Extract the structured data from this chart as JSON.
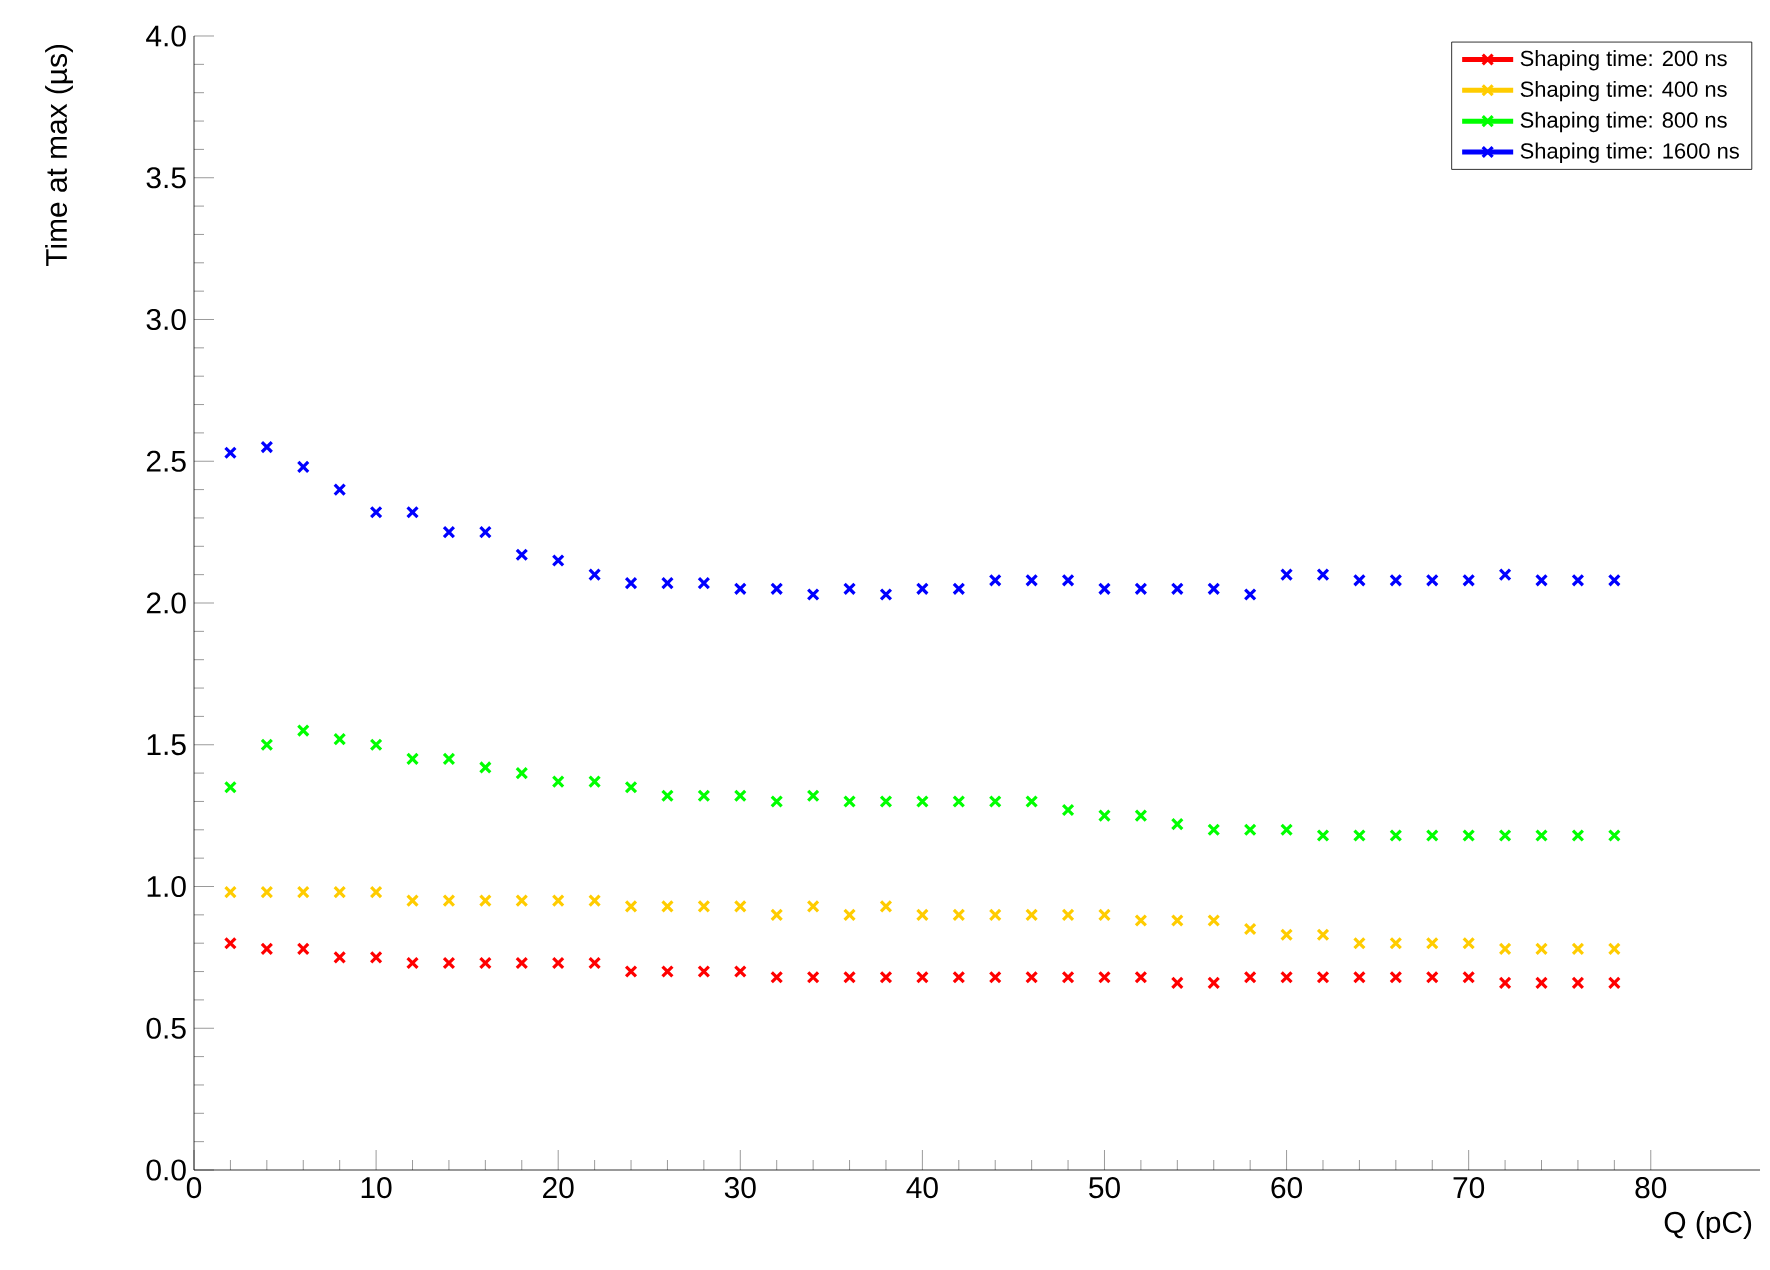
{
  "chart_data": {
    "type": "scatter",
    "xlabel": "Q (pC)",
    "ylabel": "Time at max (µs)",
    "x": [
      2,
      4,
      6,
      8,
      10,
      12,
      14,
      16,
      18,
      20,
      22,
      24,
      26,
      28,
      30,
      32,
      34,
      36,
      38,
      40,
      42,
      44,
      46,
      48,
      50,
      52,
      54,
      56,
      58,
      60,
      62,
      64,
      66,
      68,
      70,
      72,
      74,
      76,
      78
    ],
    "series": [
      {
        "name": "Shaping time: 200  ns",
        "color": "#ff0000",
        "values": [
          0.8,
          0.78,
          0.78,
          0.75,
          0.75,
          0.73,
          0.73,
          0.73,
          0.73,
          0.73,
          0.73,
          0.7,
          0.7,
          0.7,
          0.7,
          0.68,
          0.68,
          0.68,
          0.68,
          0.68,
          0.68,
          0.68,
          0.68,
          0.68,
          0.68,
          0.68,
          0.66,
          0.66,
          0.68,
          0.68,
          0.68,
          0.68,
          0.68,
          0.68,
          0.68,
          0.66,
          0.66,
          0.66,
          0.66
        ]
      },
      {
        "name": "Shaping time: 400  ns",
        "color": "#ffcc00",
        "values": [
          0.98,
          0.98,
          0.98,
          0.98,
          0.98,
          0.95,
          0.95,
          0.95,
          0.95,
          0.95,
          0.95,
          0.93,
          0.93,
          0.93,
          0.93,
          0.9,
          0.93,
          0.9,
          0.93,
          0.9,
          0.9,
          0.9,
          0.9,
          0.9,
          0.9,
          0.88,
          0.88,
          0.88,
          0.85,
          0.83,
          0.83,
          0.8,
          0.8,
          0.8,
          0.8,
          0.78,
          0.78,
          0.78,
          0.78
        ]
      },
      {
        "name": "Shaping  time:  800  ns",
        "color": "#00ff00",
        "values": [
          1.35,
          1.5,
          1.55,
          1.52,
          1.5,
          1.45,
          1.45,
          1.42,
          1.4,
          1.37,
          1.37,
          1.35,
          1.32,
          1.32,
          1.32,
          1.3,
          1.32,
          1.3,
          1.3,
          1.3,
          1.3,
          1.3,
          1.3,
          1.27,
          1.25,
          1.25,
          1.22,
          1.2,
          1.2,
          1.2,
          1.18,
          1.18,
          1.18,
          1.18,
          1.18,
          1.18,
          1.18,
          1.18,
          1.18
        ]
      },
      {
        "name": "Shaping time: 1600 ns",
        "color": "#0000ff",
        "values": [
          2.53,
          2.55,
          2.48,
          2.4,
          2.32,
          2.32,
          2.25,
          2.25,
          2.17,
          2.15,
          2.1,
          2.07,
          2.07,
          2.07,
          2.05,
          2.05,
          2.03,
          2.05,
          2.03,
          2.05,
          2.05,
          2.08,
          2.08,
          2.08,
          2.05,
          2.05,
          2.05,
          2.05,
          2.03,
          2.1,
          2.1,
          2.08,
          2.08,
          2.08,
          2.08,
          2.1,
          2.08,
          2.08,
          2.08
        ]
      }
    ],
    "xlim": [
      0,
      86
    ],
    "ylim": [
      0,
      4
    ],
    "xticks": [
      0,
      10,
      20,
      30,
      40,
      50,
      60,
      70,
      80
    ],
    "yticks": [
      {
        "value": 0,
        "label": "0.0"
      },
      {
        "value": 0.5,
        "label": "0.5"
      },
      {
        "value": 1,
        "label": "1.0"
      },
      {
        "value": 1.5,
        "label": "1.5"
      },
      {
        "value": 2,
        "label": "2.0"
      },
      {
        "value": 2.5,
        "label": "2.5"
      },
      {
        "value": 3,
        "label": "3.0"
      },
      {
        "value": 3.5,
        "label": "3.5"
      },
      {
        "value": 4,
        "label": "4.0"
      }
    ],
    "marker": "cross",
    "legend": "top right",
    "grid": false
  }
}
